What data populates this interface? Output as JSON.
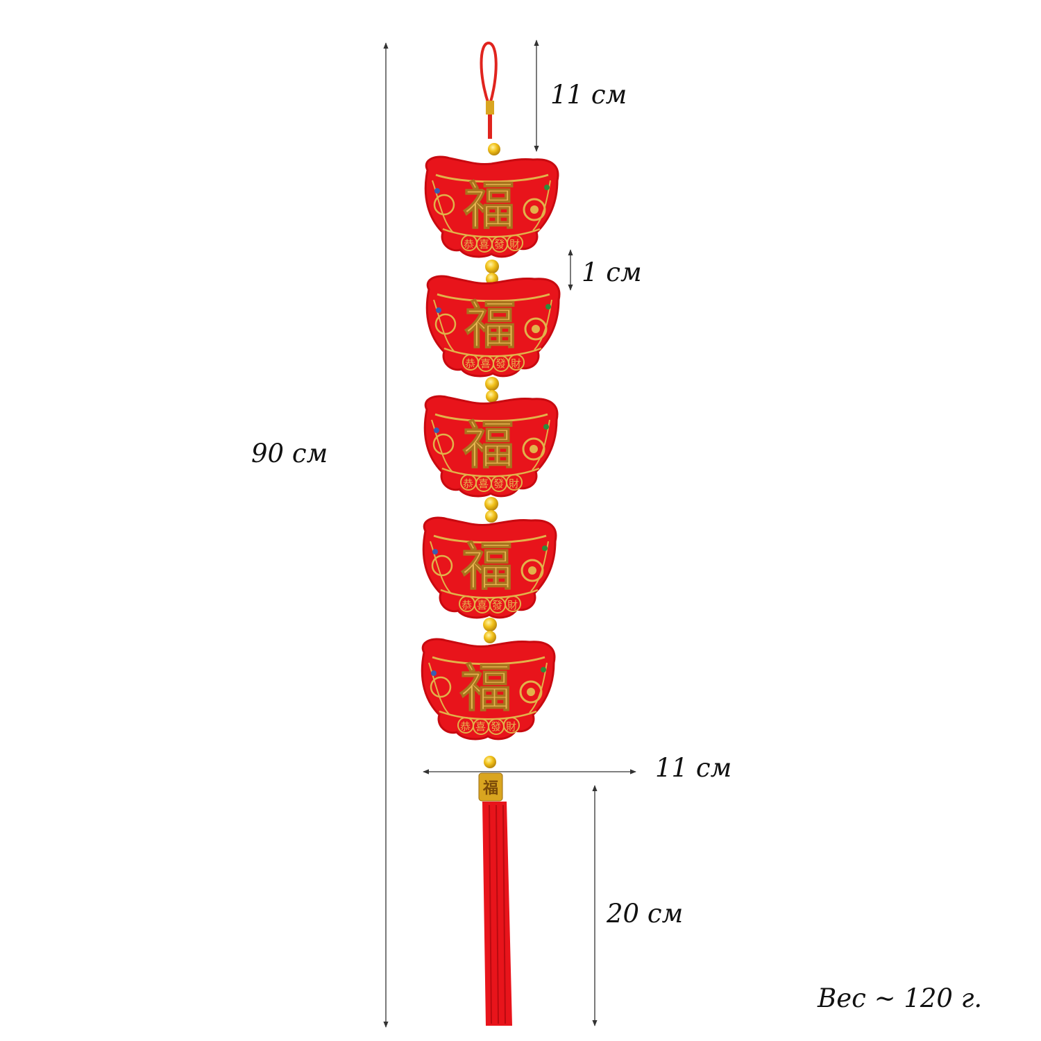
{
  "dimensions": {
    "top_loop": "11 см",
    "gap": "1 см",
    "total_length": "90 см",
    "width": "11 см",
    "tassel": "20 см"
  },
  "weight": "Вес ~ 120 г.",
  "ornament": {
    "main_character": "福",
    "bottom_characters": "恭喜發財",
    "count": 5
  },
  "colors": {
    "red": "#e8141b",
    "gold": "#e2b24a",
    "line": "#333333"
  }
}
